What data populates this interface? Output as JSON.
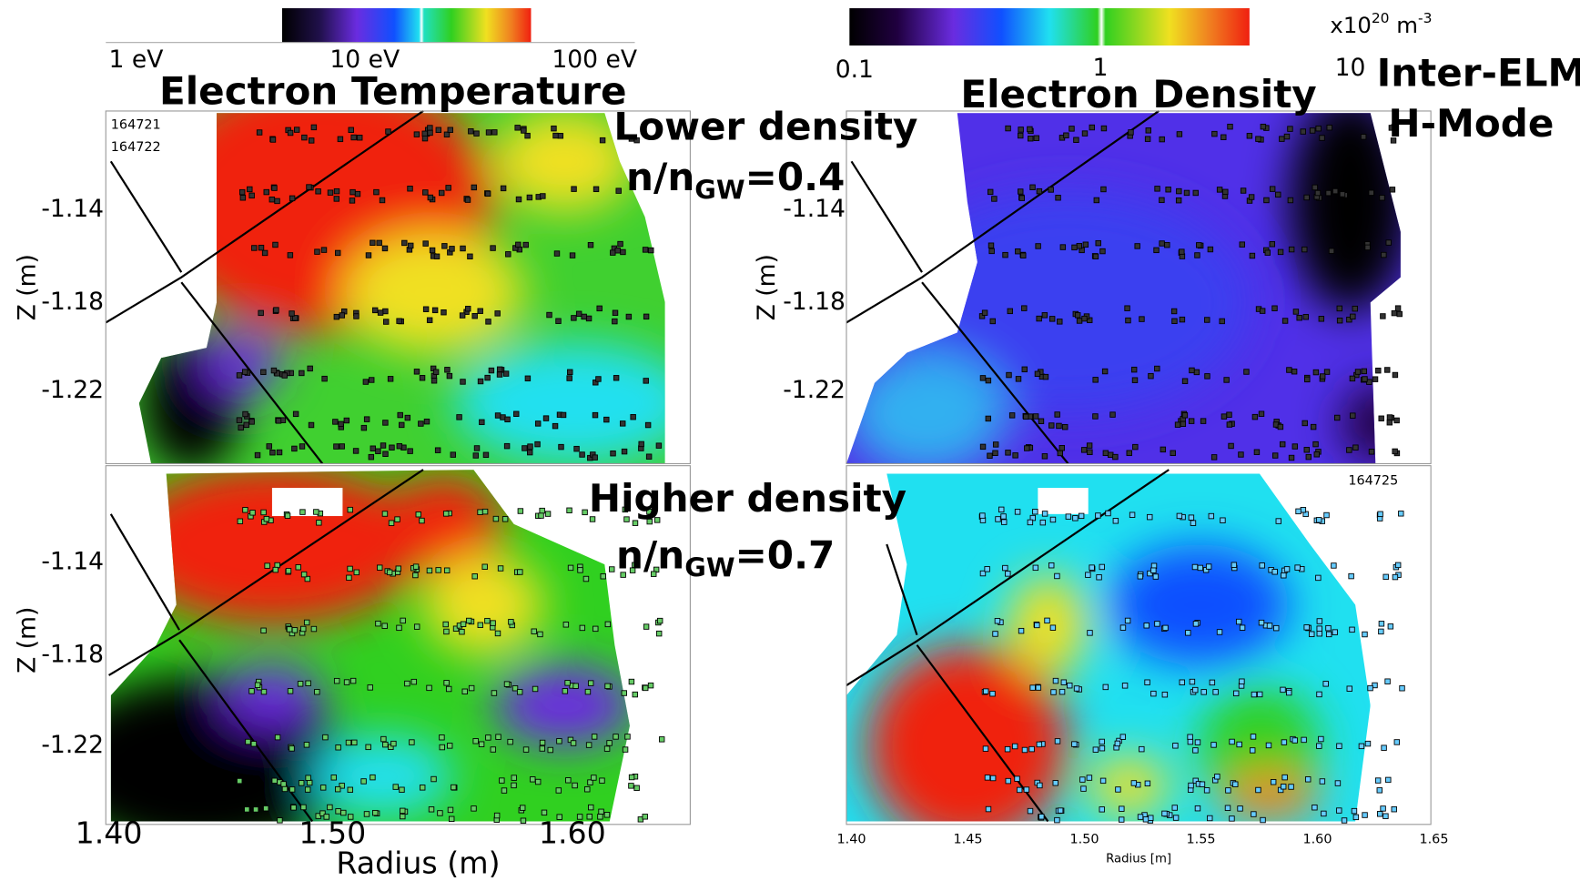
{
  "colorbars": [
    {
      "labels": [
        "1 eV",
        "10 eV",
        "100 eV"
      ]
    },
    {
      "labels": [
        "0.1",
        "1",
        "10"
      ],
      "unit": {
        "base": "x10",
        "exp": "20",
        "unit": " m",
        "unit_exp": "-3"
      }
    }
  ],
  "panels": {
    "temperature_title": "Electron Temperature",
    "density_title": "Electron Density",
    "shots_top": [
      "164721",
      "164722"
    ],
    "shot_bottom_right": "164725"
  },
  "annotations": {
    "lower": {
      "label": "Lower density",
      "ratio": "n/n",
      "sub": "GW",
      "value": "=0.4"
    },
    "higher": {
      "label": "Higher density",
      "ratio": "n/n",
      "sub": "GW",
      "value": "=0.7"
    },
    "regime": [
      "Inter-ELM",
      "H-Mode"
    ]
  },
  "axes": {
    "y_label": "Z (m)",
    "y_ticks": [
      "-1.14",
      "-1.18",
      "-1.22"
    ],
    "x_label": "Radius (m)",
    "x_ticks": [
      "1.40",
      "1.50",
      "1.60"
    ],
    "x_ticks_small": [
      "1.40",
      "1.45",
      "1.50",
      "1.55",
      "1.60",
      "1.65"
    ],
    "x_label_small": "Radius [m]"
  }
}
